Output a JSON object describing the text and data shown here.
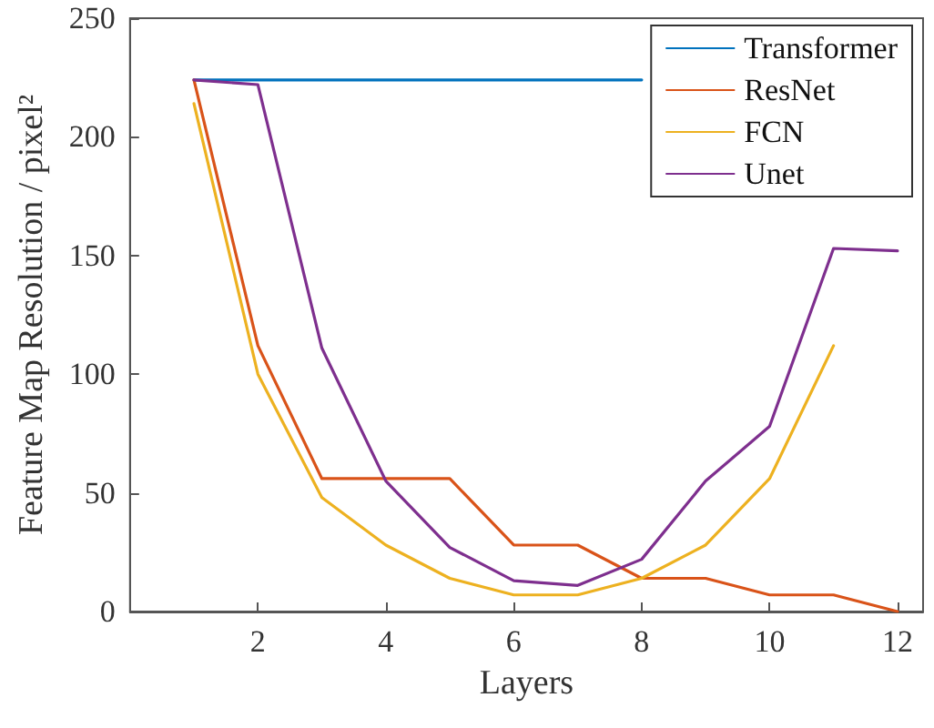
{
  "chart_data": {
    "type": "line",
    "xlabel": "Layers",
    "ylabel": "Feature Map Resolution / pixel²",
    "x": [
      1,
      2,
      3,
      4,
      5,
      6,
      7,
      8,
      9,
      10,
      11,
      12
    ],
    "series": [
      {
        "name": "Transformer",
        "color": "#0072bd",
        "values": [
          224,
          224,
          224,
          224,
          224,
          224,
          224,
          224,
          null,
          null,
          null,
          null
        ]
      },
      {
        "name": "ResNet",
        "color": "#d95319",
        "values": [
          224,
          112,
          56,
          56,
          56,
          28,
          28,
          14,
          14,
          7,
          7,
          0
        ]
      },
      {
        "name": "FCN",
        "color": "#edb120",
        "values": [
          214,
          100,
          48,
          28,
          14,
          7,
          7,
          14,
          28,
          56,
          112,
          null
        ]
      },
      {
        "name": "Unet",
        "color": "#7e2f8e",
        "values": [
          224,
          222,
          111,
          55,
          27,
          13,
          11,
          22,
          55,
          78,
          153,
          152
        ]
      }
    ],
    "xlim": [
      0,
      12.4
    ],
    "xticks": [
      2,
      4,
      6,
      8,
      10,
      12
    ],
    "ylim": [
      0,
      250
    ],
    "yticks": [
      0,
      50,
      100,
      150,
      200,
      250
    ],
    "grid": false,
    "legend": "top right",
    "marker": "none",
    "line_style": "solid"
  }
}
